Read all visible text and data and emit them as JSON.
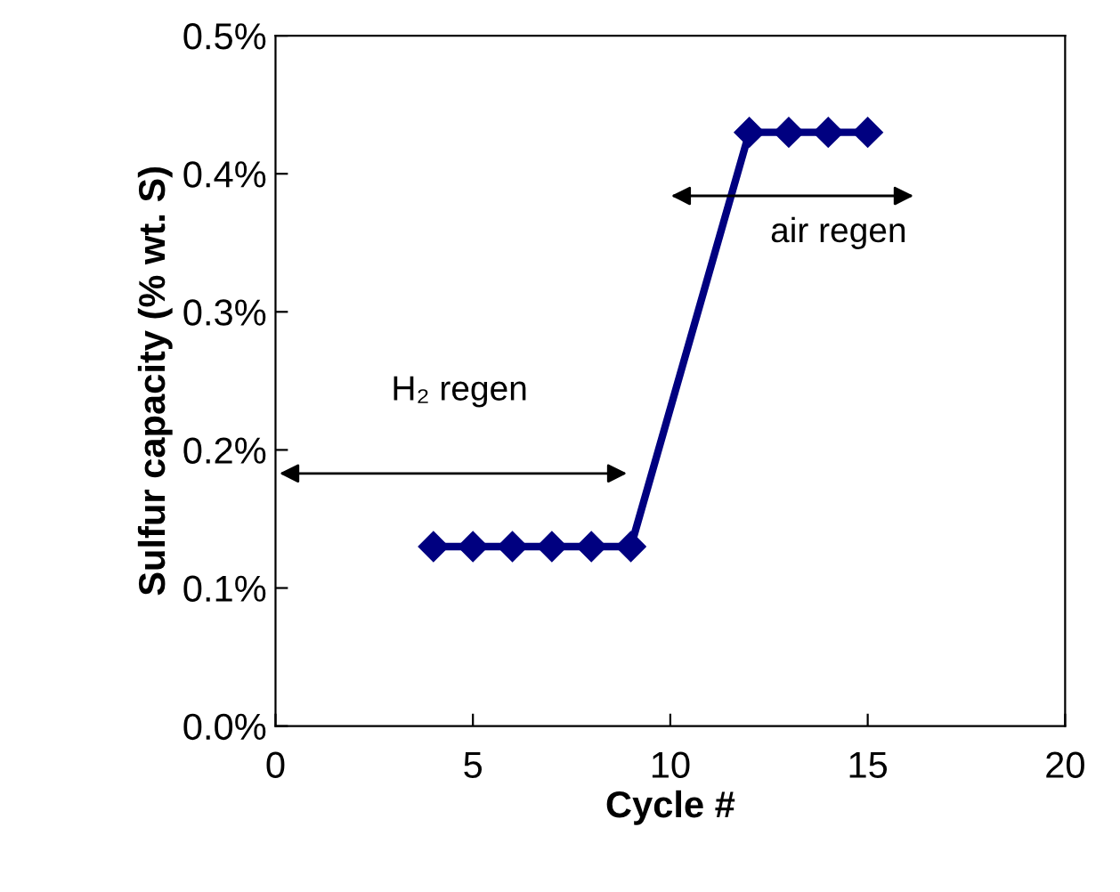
{
  "chart_data": {
    "type": "line",
    "xlabel": "Cycle #",
    "ylabel": "Sulfur capacity (% wt. S)",
    "x": [
      4,
      5,
      6,
      7,
      8,
      9,
      12,
      13,
      14,
      15
    ],
    "series": [
      {
        "color": "#000080",
        "values": [
          0.13,
          0.13,
          0.13,
          0.13,
          0.13,
          0.13,
          0.43,
          0.43,
          0.43,
          0.43
        ]
      }
    ],
    "marker": "diamond",
    "line_style": "solid",
    "grid": false,
    "legend": false,
    "xlim": [
      0,
      20
    ],
    "xticks": [
      0,
      5,
      10,
      15,
      20
    ],
    "ylim": [
      0,
      0.5
    ],
    "yticks": [
      {
        "value": 0,
        "label": "0.0%"
      },
      {
        "value": 0.1,
        "label": "0.1%"
      },
      {
        "value": 0.2,
        "label": "0.2%"
      },
      {
        "value": 0.3,
        "label": "0.3%"
      },
      {
        "value": 0.4,
        "label": "0.4%"
      },
      {
        "value": 0.5,
        "label": "0.5%"
      }
    ],
    "annotations": [
      "H₂ regen",
      "air regen"
    ]
  }
}
